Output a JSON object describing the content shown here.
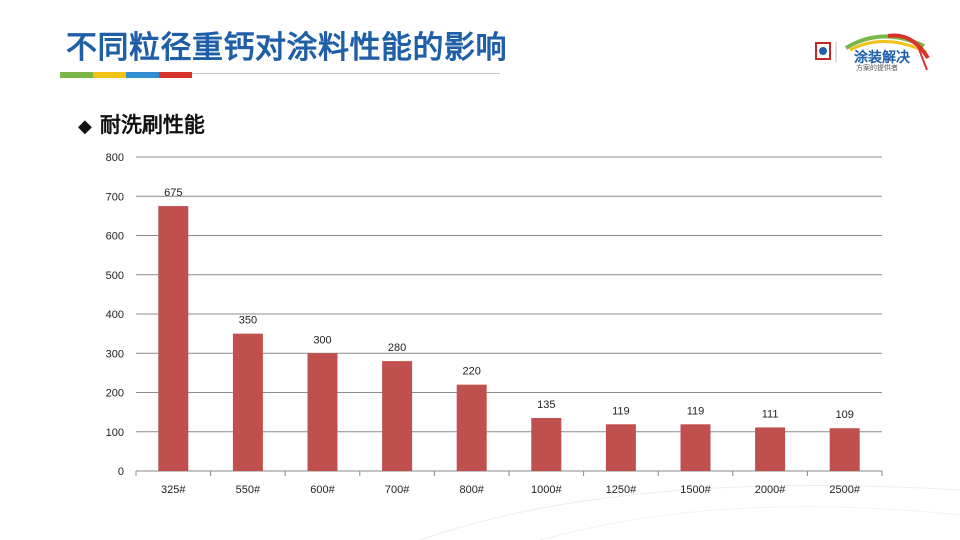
{
  "slide": {
    "title": "不同粒径重钙对涂料性能的影响",
    "subtitle": "耐洗刷性能",
    "bullet_icon": "diamond-icon",
    "accent_colors": [
      "#7ab648",
      "#f2c314",
      "#2f8fd0",
      "#d9342b"
    ]
  },
  "logo": {
    "brand_text": "涂装解决",
    "sub_text": "方案的提供者"
  },
  "chart_data": {
    "type": "bar",
    "title": "",
    "xlabel": "",
    "ylabel": "",
    "categories": [
      "325#",
      "550#",
      "600#",
      "700#",
      "800#",
      "1000#",
      "1250#",
      "1500#",
      "2000#",
      "2500#"
    ],
    "values": [
      675,
      350,
      300,
      280,
      220,
      135,
      119,
      119,
      111,
      109
    ],
    "ylim": [
      0,
      800
    ],
    "yticks": [
      0,
      100,
      200,
      300,
      400,
      500,
      600,
      700,
      800
    ],
    "grid": true,
    "bar_color": "#c0504d",
    "data_labels": true,
    "legend": "none"
  }
}
